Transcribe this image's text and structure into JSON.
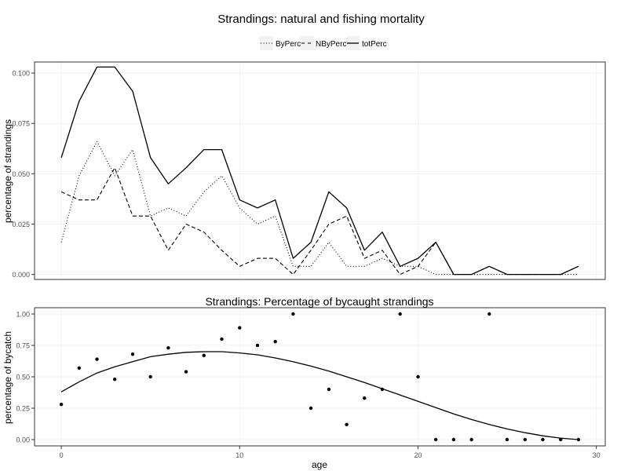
{
  "chart_data": [
    {
      "type": "line",
      "title": "Strandings: natural and fishing mortality",
      "ylabel": "percentage of strandings",
      "xlabel": "",
      "xlim": [
        -1.5,
        30.5
      ],
      "ylim": [
        -0.0025,
        0.1055
      ],
      "yticks": [
        {
          "value": 0,
          "label": "0.000"
        },
        {
          "value": 0.025,
          "label": "0.025"
        },
        {
          "value": 0.05,
          "label": "0.050"
        },
        {
          "value": 0.075,
          "label": "0.075"
        },
        {
          "value": 0.1,
          "label": "0.100"
        }
      ],
      "xticks": [
        0,
        10,
        20,
        30
      ],
      "grid": true,
      "legend": "top-center",
      "x": [
        0,
        1,
        2,
        3,
        4,
        5,
        6,
        7,
        8,
        9,
        10,
        11,
        12,
        13,
        14,
        15,
        16,
        17,
        18,
        19,
        20,
        21,
        22,
        23,
        24,
        25,
        26,
        27,
        28,
        29
      ],
      "series": [
        {
          "name": "ByPerc",
          "dash": "dotted",
          "values": [
            0.016,
            0.049,
            0.066,
            0.049,
            0.062,
            0.029,
            0.033,
            0.029,
            0.041,
            0.049,
            0.033,
            0.025,
            0.029,
            0.004,
            0.004,
            0.016,
            0.004,
            0.004,
            0.008,
            0.004,
            0.004,
            0.0,
            0.0,
            0.0,
            0.0,
            0.0,
            0.0,
            0.0,
            0.0,
            0.0
          ]
        },
        {
          "name": "NByPerc",
          "dash": "dashed",
          "values": [
            0.041,
            0.037,
            0.037,
            0.053,
            0.029,
            0.029,
            0.012,
            0.025,
            0.021,
            0.012,
            0.004,
            0.008,
            0.008,
            0.0,
            0.012,
            0.025,
            0.029,
            0.008,
            0.012,
            0.0,
            0.004,
            0.016,
            0.0,
            0.0,
            0.004,
            0.0,
            0.0,
            0.0,
            0.0,
            0.004
          ]
        },
        {
          "name": "totPerc",
          "dash": "solid",
          "values": [
            0.058,
            0.086,
            0.103,
            0.103,
            0.091,
            0.058,
            0.045,
            0.053,
            0.062,
            0.062,
            0.037,
            0.033,
            0.037,
            0.008,
            0.016,
            0.041,
            0.033,
            0.012,
            0.021,
            0.004,
            0.008,
            0.016,
            0.0,
            0.0,
            0.004,
            0.0,
            0.0,
            0.0,
            0.0,
            0.004
          ]
        }
      ]
    },
    {
      "type": "scatter",
      "title": "Strandings: Percentage of bycaught strandings",
      "ylabel": "percentage of bycatch",
      "xlabel": "age",
      "xlim": [
        -1.5,
        30.5
      ],
      "ylim": [
        -0.05,
        1.05
      ],
      "yticks": [
        {
          "value": 0,
          "label": "0.00"
        },
        {
          "value": 0.25,
          "label": "0.25"
        },
        {
          "value": 0.5,
          "label": "0.50"
        },
        {
          "value": 0.75,
          "label": "0.75"
        },
        {
          "value": 1,
          "label": "1.00"
        }
      ],
      "xticks": [
        {
          "value": 0,
          "label": "0"
        },
        {
          "value": 10,
          "label": "10"
        },
        {
          "value": 20,
          "label": "20"
        },
        {
          "value": 30,
          "label": "30"
        }
      ],
      "grid": true,
      "points": {
        "x": [
          0,
          1,
          2,
          3,
          4,
          5,
          6,
          7,
          8,
          9,
          10,
          11,
          12,
          13,
          14,
          15,
          16,
          17,
          18,
          19,
          20,
          21,
          22,
          23,
          24,
          25,
          26,
          27,
          28,
          29
        ],
        "y": [
          0.28,
          0.57,
          0.64,
          0.48,
          0.68,
          0.5,
          0.73,
          0.54,
          0.67,
          0.8,
          0.89,
          0.75,
          0.78,
          1.0,
          0.25,
          0.4,
          0.12,
          0.33,
          0.4,
          1.0,
          0.5,
          0.0,
          0.0,
          0.0,
          1.0,
          0.0,
          0.0,
          0.0,
          0.0,
          0.0
        ]
      },
      "fit_line": {
        "x": [
          0,
          1,
          2,
          3,
          4,
          5,
          6,
          7,
          8,
          9,
          10,
          11,
          12,
          13,
          14,
          15,
          16,
          17,
          18,
          19,
          20,
          21,
          22,
          23,
          24,
          25,
          26,
          27,
          28,
          29
        ],
        "y": [
          0.38,
          0.46,
          0.53,
          0.58,
          0.62,
          0.66,
          0.68,
          0.695,
          0.7,
          0.7,
          0.69,
          0.675,
          0.65,
          0.62,
          0.585,
          0.545,
          0.5,
          0.455,
          0.405,
          0.355,
          0.305,
          0.255,
          0.205,
          0.16,
          0.12,
          0.085,
          0.055,
          0.03,
          0.012,
          0.0
        ]
      }
    }
  ]
}
